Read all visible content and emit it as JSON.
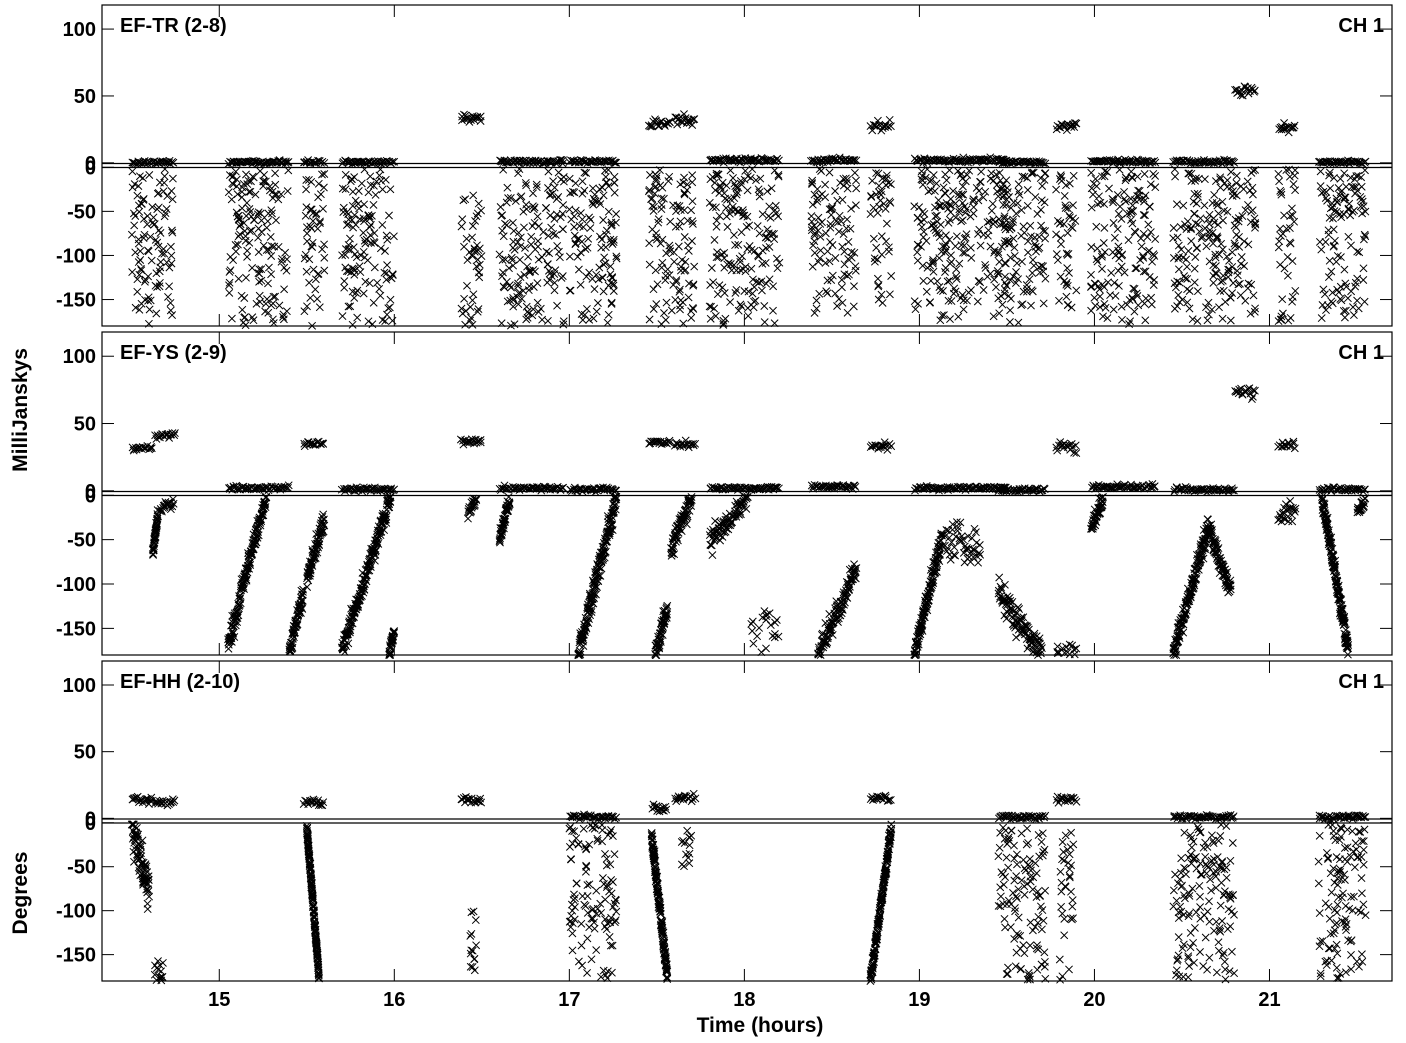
{
  "chart_data": {
    "type": "scatter",
    "marker": "x",
    "xlabel": "Time (hours)",
    "ylabel_amplitude": "MilliJanskys",
    "ylabel_phase": "Degrees",
    "xlim": [
      14.33,
      21.7
    ],
    "x_ticks": [
      15,
      16,
      17,
      18,
      19,
      20,
      21
    ],
    "amp_ticks": [
      0,
      50,
      100
    ],
    "phase_ticks": [
      0,
      -50,
      -100,
      -150
    ],
    "amp_range": [
      -2,
      118
    ],
    "phase_range": [
      -180,
      2
    ],
    "channel_label": "CH 1",
    "panels": [
      {
        "baseline": "EF-TR (2-8)",
        "amplitude_scans": [
          {
            "t0": 14.5,
            "t1": 14.74,
            "y": 0.5,
            "sd": 0.6
          },
          {
            "t0": 15.05,
            "t1": 15.4,
            "y": 0.5,
            "sd": 0.6
          },
          {
            "t0": 15.48,
            "t1": 15.6,
            "y": 0.5,
            "sd": 0.6
          },
          {
            "t0": 15.7,
            "t1": 16.0,
            "y": 0.5,
            "sd": 0.6
          },
          {
            "t0": 16.38,
            "t1": 16.5,
            "y": 33,
            "sd": 1.5
          },
          {
            "t0": 16.6,
            "t1": 16.97,
            "y": 1,
            "sd": 0.8
          },
          {
            "t0": 17.0,
            "t1": 17.27,
            "y": 1,
            "sd": 0.8
          },
          {
            "t0": 17.45,
            "t1": 17.58,
            "y": 29,
            "sd": 2
          },
          {
            "t0": 17.6,
            "t1": 17.72,
            "y": 31,
            "sd": 2
          },
          {
            "t0": 17.8,
            "t1": 18.2,
            "y": 2,
            "sd": 0.8
          },
          {
            "t0": 18.38,
            "t1": 18.64,
            "y": 2,
            "sd": 0.8
          },
          {
            "t0": 18.72,
            "t1": 18.84,
            "y": 28,
            "sd": 1.5
          },
          {
            "t0": 18.97,
            "t1": 19.5,
            "y": 2,
            "sd": 0.8
          },
          {
            "t0": 19.45,
            "t1": 19.72,
            "y": 0.5,
            "sd": 0.6
          },
          {
            "t0": 19.78,
            "t1": 19.9,
            "y": 27,
            "sd": 1.5
          },
          {
            "t0": 19.98,
            "t1": 20.35,
            "y": 1,
            "sd": 0.8
          },
          {
            "t0": 20.45,
            "t1": 20.8,
            "y": 1,
            "sd": 0.8
          },
          {
            "t0": 20.8,
            "t1": 20.92,
            "y": 55,
            "sd": 2
          },
          {
            "t0": 21.05,
            "t1": 21.15,
            "y": 26,
            "sd": 1.5
          },
          {
            "t0": 21.28,
            "t1": 21.55,
            "y": 0.5,
            "sd": 0.6
          }
        ],
        "phase_scans": [
          {
            "t0": 14.5,
            "t1": 14.74,
            "kind": "scatter",
            "lo": -180,
            "hi": -2
          },
          {
            "t0": 15.05,
            "t1": 15.4,
            "kind": "scatter",
            "lo": -180,
            "hi": -2
          },
          {
            "t0": 15.48,
            "t1": 15.6,
            "kind": "scatter",
            "lo": -180,
            "hi": -2
          },
          {
            "t0": 15.7,
            "t1": 16.0,
            "kind": "scatter",
            "lo": -180,
            "hi": -2
          },
          {
            "t0": 16.38,
            "t1": 16.5,
            "kind": "scatter",
            "lo": -180,
            "hi": -20
          },
          {
            "t0": 16.6,
            "t1": 16.97,
            "kind": "scatter",
            "lo": -180,
            "hi": -2
          },
          {
            "t0": 17.0,
            "t1": 17.27,
            "kind": "scatter",
            "lo": -180,
            "hi": -2
          },
          {
            "t0": 17.45,
            "t1": 17.72,
            "kind": "scatter",
            "lo": -180,
            "hi": -2
          },
          {
            "t0": 17.8,
            "t1": 18.2,
            "kind": "scatter",
            "lo": -180,
            "hi": -2
          },
          {
            "t0": 18.38,
            "t1": 18.64,
            "kind": "scatter",
            "lo": -170,
            "hi": -2
          },
          {
            "t0": 18.72,
            "t1": 18.84,
            "kind": "scatter",
            "lo": -160,
            "hi": -2
          },
          {
            "t0": 18.97,
            "t1": 19.5,
            "kind": "scatter",
            "lo": -180,
            "hi": -2
          },
          {
            "t0": 19.45,
            "t1": 19.72,
            "kind": "scatter",
            "lo": -180,
            "hi": -2
          },
          {
            "t0": 19.78,
            "t1": 19.9,
            "kind": "scatter",
            "lo": -160,
            "hi": -2
          },
          {
            "t0": 19.98,
            "t1": 20.35,
            "kind": "scatter",
            "lo": -180,
            "hi": -2
          },
          {
            "t0": 20.45,
            "t1": 20.8,
            "kind": "scatter",
            "lo": -180,
            "hi": -2
          },
          {
            "t0": 20.8,
            "t1": 20.92,
            "kind": "scatter",
            "lo": -180,
            "hi": -2
          },
          {
            "t0": 21.05,
            "t1": 21.15,
            "kind": "scatter",
            "lo": -180,
            "hi": -2
          },
          {
            "t0": 21.28,
            "t1": 21.55,
            "kind": "scatter",
            "lo": -180,
            "hi": -2
          }
        ]
      },
      {
        "baseline": "EF-YS (2-9)",
        "amplitude_scans": [
          {
            "t0": 14.5,
            "t1": 14.62,
            "y": 32,
            "sd": 1.2
          },
          {
            "t0": 14.63,
            "t1": 14.75,
            "y": 41,
            "sd": 1.2
          },
          {
            "t0": 15.05,
            "t1": 15.4,
            "y": 2,
            "sd": 0.8
          },
          {
            "t0": 15.48,
            "t1": 15.6,
            "y": 35,
            "sd": 1.5
          },
          {
            "t0": 15.7,
            "t1": 16.0,
            "y": 1,
            "sd": 0.8
          },
          {
            "t0": 16.38,
            "t1": 16.5,
            "y": 37,
            "sd": 1.2
          },
          {
            "t0": 16.6,
            "t1": 16.97,
            "y": 2,
            "sd": 0.8
          },
          {
            "t0": 17.0,
            "t1": 17.27,
            "y": 1,
            "sd": 0.8
          },
          {
            "t0": 17.45,
            "t1": 17.58,
            "y": 36,
            "sd": 1.2
          },
          {
            "t0": 17.6,
            "t1": 17.72,
            "y": 34,
            "sd": 1.2
          },
          {
            "t0": 17.8,
            "t1": 18.2,
            "y": 2,
            "sd": 0.8
          },
          {
            "t0": 18.38,
            "t1": 18.64,
            "y": 3,
            "sd": 0.8
          },
          {
            "t0": 18.72,
            "t1": 18.84,
            "y": 33,
            "sd": 1.2
          },
          {
            "t0": 18.97,
            "t1": 19.5,
            "y": 2,
            "sd": 0.8
          },
          {
            "t0": 19.45,
            "t1": 19.72,
            "y": 0.5,
            "sd": 0.6
          },
          {
            "t0": 19.78,
            "t1": 19.9,
            "y": 33,
            "sd": 2
          },
          {
            "t0": 19.98,
            "t1": 20.35,
            "y": 3,
            "sd": 0.8
          },
          {
            "t0": 20.45,
            "t1": 20.8,
            "y": 1,
            "sd": 0.8
          },
          {
            "t0": 20.8,
            "t1": 20.92,
            "y": 73,
            "sd": 2
          },
          {
            "t0": 21.05,
            "t1": 21.15,
            "y": 34,
            "sd": 1.2
          },
          {
            "t0": 21.28,
            "t1": 21.55,
            "y": 1,
            "sd": 0.8
          }
        ],
        "phase_scans": [
          {
            "t0": 14.62,
            "t1": 14.65,
            "kind": "track",
            "a": -65,
            "b": -20,
            "w": 3
          },
          {
            "t0": 14.66,
            "t1": 14.74,
            "kind": "track",
            "a": -15,
            "b": -8,
            "w": 3
          },
          {
            "t0": 15.05,
            "t1": 15.12,
            "kind": "track",
            "a": -170,
            "b": -120,
            "w": 6
          },
          {
            "t0": 15.12,
            "t1": 15.27,
            "kind": "track",
            "a": -110,
            "b": -2,
            "w": 6
          },
          {
            "t0": 15.4,
            "t1": 15.48,
            "kind": "track",
            "a": -175,
            "b": -110,
            "w": 6
          },
          {
            "t0": 15.5,
            "t1": 15.6,
            "kind": "track",
            "a": -95,
            "b": -30,
            "w": 6
          },
          {
            "t0": 15.7,
            "t1": 15.98,
            "kind": "track",
            "a": -175,
            "b": -2,
            "w": 6
          },
          {
            "t0": 15.97,
            "t1": 16.0,
            "kind": "track",
            "a": -180,
            "b": -150,
            "w": 4
          },
          {
            "t0": 16.42,
            "t1": 16.47,
            "kind": "track",
            "a": -20,
            "b": -5,
            "w": 3
          },
          {
            "t0": 16.6,
            "t1": 16.66,
            "kind": "track",
            "a": -50,
            "b": -5,
            "w": 4
          },
          {
            "t0": 17.05,
            "t1": 17.27,
            "kind": "track",
            "a": -180,
            "b": -2,
            "w": 7
          },
          {
            "t0": 17.49,
            "t1": 17.56,
            "kind": "track",
            "a": -180,
            "b": -125,
            "w": 5
          },
          {
            "t0": 17.58,
            "t1": 17.7,
            "kind": "track",
            "a": -60,
            "b": -2,
            "w": 6
          },
          {
            "t0": 17.8,
            "t1": 18.02,
            "kind": "track",
            "a": -55,
            "b": -2,
            "w": 6
          },
          {
            "t0": 18.02,
            "t1": 18.2,
            "kind": "scatter",
            "lo": -180,
            "hi": -130
          },
          {
            "t0": 18.42,
            "t1": 18.64,
            "kind": "track",
            "a": -180,
            "b": -85,
            "w": 6
          },
          {
            "t0": 18.97,
            "t1": 19.12,
            "kind": "track",
            "a": -180,
            "b": -55,
            "w": 6
          },
          {
            "t0": 19.12,
            "t1": 19.35,
            "kind": "track",
            "a": -45,
            "b": -65,
            "w": 10
          },
          {
            "t0": 19.45,
            "t1": 19.7,
            "kind": "track",
            "a": -110,
            "b": -178,
            "w": 8
          },
          {
            "t0": 19.78,
            "t1": 19.9,
            "kind": "scatter",
            "lo": -180,
            "hi": -168
          },
          {
            "t0": 19.98,
            "t1": 20.05,
            "kind": "track",
            "a": -40,
            "b": -2,
            "w": 5
          },
          {
            "t0": 20.45,
            "t1": 20.65,
            "kind": "track",
            "a": -180,
            "b": -35,
            "w": 6
          },
          {
            "t0": 20.65,
            "t1": 20.78,
            "kind": "track",
            "a": -35,
            "b": -110,
            "w": 6
          },
          {
            "t0": 21.05,
            "t1": 21.15,
            "kind": "track",
            "a": -25,
            "b": -15,
            "w": 5
          },
          {
            "t0": 21.3,
            "t1": 21.45,
            "kind": "track",
            "a": -2,
            "b": -175,
            "w": 6
          },
          {
            "t0": 21.5,
            "t1": 21.55,
            "kind": "track",
            "a": -20,
            "b": -5,
            "w": 4
          }
        ]
      },
      {
        "baseline": "EF-HH (2-10)",
        "amplitude_scans": [
          {
            "t0": 14.5,
            "t1": 14.62,
            "y": 14,
            "sd": 1.2
          },
          {
            "t0": 14.63,
            "t1": 14.75,
            "y": 12,
            "sd": 1.2
          },
          {
            "t0": 15.48,
            "t1": 15.6,
            "y": 12,
            "sd": 1.2
          },
          {
            "t0": 16.38,
            "t1": 16.5,
            "y": 14,
            "sd": 1.2
          },
          {
            "t0": 17.0,
            "t1": 17.27,
            "y": 1,
            "sd": 0.8
          },
          {
            "t0": 17.47,
            "t1": 17.56,
            "y": 7,
            "sd": 1.5
          },
          {
            "t0": 17.6,
            "t1": 17.72,
            "y": 15,
            "sd": 1.2
          },
          {
            "t0": 18.72,
            "t1": 18.84,
            "y": 15,
            "sd": 1.2
          },
          {
            "t0": 19.45,
            "t1": 19.72,
            "y": 1,
            "sd": 0.8
          },
          {
            "t0": 19.78,
            "t1": 19.9,
            "y": 14,
            "sd": 1.5
          },
          {
            "t0": 20.45,
            "t1": 20.8,
            "y": 1,
            "sd": 0.8
          },
          {
            "t0": 21.28,
            "t1": 21.55,
            "y": 1,
            "sd": 0.8
          }
        ],
        "phase_scans": [
          {
            "t0": 14.5,
            "t1": 14.6,
            "kind": "track",
            "a": -5,
            "b": -80,
            "w": 12
          },
          {
            "t0": 14.63,
            "t1": 14.68,
            "kind": "scatter",
            "lo": -180,
            "hi": -155
          },
          {
            "t0": 15.5,
            "t1": 15.57,
            "kind": "track",
            "a": -5,
            "b": -175,
            "w": 3
          },
          {
            "t0": 16.43,
            "t1": 16.47,
            "kind": "scatter",
            "lo": -178,
            "hi": -100
          },
          {
            "t0": 17.0,
            "t1": 17.27,
            "kind": "scatter",
            "lo": -180,
            "hi": -2
          },
          {
            "t0": 17.47,
            "t1": 17.56,
            "kind": "track",
            "a": -15,
            "b": -175,
            "w": 5
          },
          {
            "t0": 17.64,
            "t1": 17.7,
            "kind": "scatter",
            "lo": -50,
            "hi": -5
          },
          {
            "t0": 18.72,
            "t1": 18.84,
            "kind": "track",
            "a": -180,
            "b": -5,
            "w": 4
          },
          {
            "t0": 19.45,
            "t1": 19.72,
            "kind": "scatter",
            "lo": -180,
            "hi": -2
          },
          {
            "t0": 19.8,
            "t1": 19.88,
            "kind": "scatter",
            "lo": -180,
            "hi": -2
          },
          {
            "t0": 20.45,
            "t1": 20.8,
            "kind": "scatter",
            "lo": -180,
            "hi": -2
          },
          {
            "t0": 21.28,
            "t1": 21.55,
            "kind": "scatter",
            "lo": -180,
            "hi": -2
          }
        ]
      }
    ]
  }
}
